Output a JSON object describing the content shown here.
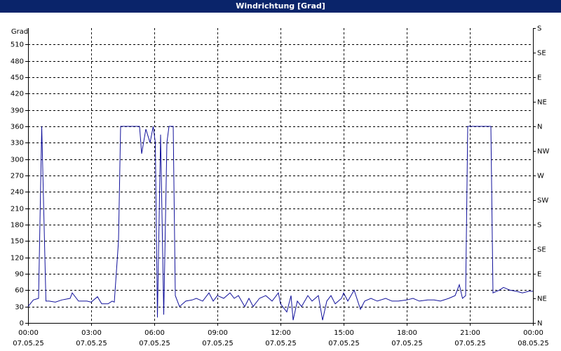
{
  "chart_data": {
    "type": "line",
    "title": "Windrichtung [Grad]",
    "y_label": "Grad",
    "x": [
      0.0,
      0.25,
      0.5,
      0.65,
      0.85,
      1.0,
      1.3,
      1.6,
      2.0,
      2.1,
      2.4,
      2.8,
      3.0,
      3.3,
      3.5,
      3.8,
      4.0,
      4.1,
      4.3,
      4.4,
      5.0,
      5.3,
      5.4,
      5.6,
      5.8,
      5.95,
      6.05,
      6.15,
      6.3,
      6.45,
      6.6,
      6.7,
      6.9,
      7.0,
      7.2,
      7.5,
      7.8,
      8.0,
      8.3,
      8.6,
      8.8,
      9.0,
      9.3,
      9.6,
      9.8,
      10.0,
      10.3,
      10.5,
      10.7,
      11.0,
      11.3,
      11.6,
      11.9,
      12.0,
      12.3,
      12.5,
      12.6,
      12.8,
      13.0,
      13.3,
      13.5,
      13.8,
      14.0,
      14.2,
      14.4,
      14.6,
      14.9,
      15.0,
      15.2,
      15.5,
      15.8,
      16.0,
      16.3,
      16.6,
      17.0,
      17.3,
      17.6,
      18.0,
      18.3,
      18.6,
      19.0,
      19.3,
      19.6,
      20.0,
      20.3,
      20.5,
      20.65,
      20.8,
      20.9,
      21.5,
      22.0,
      22.1,
      22.4,
      22.6,
      22.9,
      23.2,
      23.5,
      23.8,
      24.0
    ],
    "series": [
      {
        "name": "Windrichtung",
        "color": "#10109a",
        "values": [
          30,
          42,
          45,
          360,
          40,
          40,
          38,
          42,
          45,
          55,
          40,
          40,
          38,
          48,
          35,
          35,
          40,
          38,
          150,
          360,
          360,
          360,
          310,
          355,
          330,
          360,
          330,
          10,
          345,
          15,
          330,
          360,
          360,
          50,
          30,
          40,
          42,
          45,
          40,
          55,
          40,
          50,
          45,
          55,
          45,
          50,
          30,
          45,
          30,
          45,
          50,
          40,
          55,
          35,
          20,
          50,
          5,
          40,
          30,
          50,
          40,
          50,
          5,
          40,
          50,
          35,
          45,
          55,
          40,
          60,
          25,
          40,
          45,
          40,
          45,
          40,
          40,
          42,
          45,
          40,
          42,
          42,
          40,
          45,
          50,
          70,
          45,
          50,
          360,
          360,
          360,
          55,
          60,
          65,
          60,
          58,
          55,
          58,
          58
        ]
      }
    ],
    "xlim": [
      0,
      24
    ],
    "xticks": [
      {
        "value": 0,
        "label": "00:00",
        "date": "07.05.25"
      },
      {
        "value": 3,
        "label": "03:00",
        "date": "07.05.25"
      },
      {
        "value": 6,
        "label": "06:00",
        "date": "07.05.25"
      },
      {
        "value": 9,
        "label": "09:00",
        "date": "07.05.25"
      },
      {
        "value": 12,
        "label": "12:00",
        "date": "07.05.25"
      },
      {
        "value": 15,
        "label": "15:00",
        "date": "07.05.25"
      },
      {
        "value": 18,
        "label": "18:00",
        "date": "07.05.25"
      },
      {
        "value": 21,
        "label": "21:00",
        "date": "07.05.25"
      },
      {
        "value": 24,
        "label": "00:00",
        "date": "08.05.25"
      }
    ],
    "ylim": [
      0,
      540
    ],
    "yticks": [
      0,
      30,
      60,
      90,
      120,
      150,
      180,
      210,
      240,
      270,
      300,
      330,
      360,
      390,
      420,
      450,
      480,
      510
    ],
    "y2lim": [
      0,
      540
    ],
    "y2ticks": [
      {
        "value": 0,
        "label": "N"
      },
      {
        "value": 45,
        "label": "NE"
      },
      {
        "value": 90,
        "label": "E"
      },
      {
        "value": 135,
        "label": "SE"
      },
      {
        "value": 180,
        "label": "S"
      },
      {
        "value": 225,
        "label": "SW"
      },
      {
        "value": 270,
        "label": "W"
      },
      {
        "value": 315,
        "label": "NW"
      },
      {
        "value": 360,
        "label": "N"
      },
      {
        "value": 405,
        "label": "NE"
      },
      {
        "value": 450,
        "label": "E"
      },
      {
        "value": 495,
        "label": "SE"
      },
      {
        "value": 540,
        "label": "S"
      }
    ],
    "grid": true
  }
}
